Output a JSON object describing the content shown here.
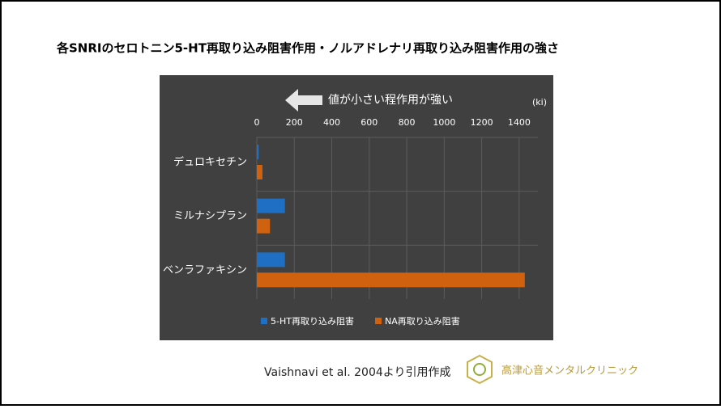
{
  "chart_data": {
    "type": "hbar",
    "title": "各SNRIのセロトニン5-HT再取り込み阻害作用・ノルアドレナリ再取り込み阻害作用の強さ",
    "annotation": "値が小さい程作用が強い",
    "unit_label": "(ki)",
    "categories": [
      "デュロキセチン",
      "ミルナシプラン",
      "ベンラファキシン"
    ],
    "series": [
      {
        "name": "5-HT再取り込み阻害",
        "color": "#1f6fc5",
        "values": [
          10,
          150,
          150
        ]
      },
      {
        "name": "NA再取り込み阻害",
        "color": "#d0620f",
        "values": [
          30,
          70,
          1430
        ]
      }
    ],
    "xlim": [
      0,
      1500
    ],
    "xticks": [
      0,
      200,
      400,
      600,
      800,
      1000,
      1200,
      1400
    ],
    "grid": true,
    "source": "Vaishnavi et al. 2004より引用作成",
    "clinic": "高津心音メンタルクリニック"
  }
}
